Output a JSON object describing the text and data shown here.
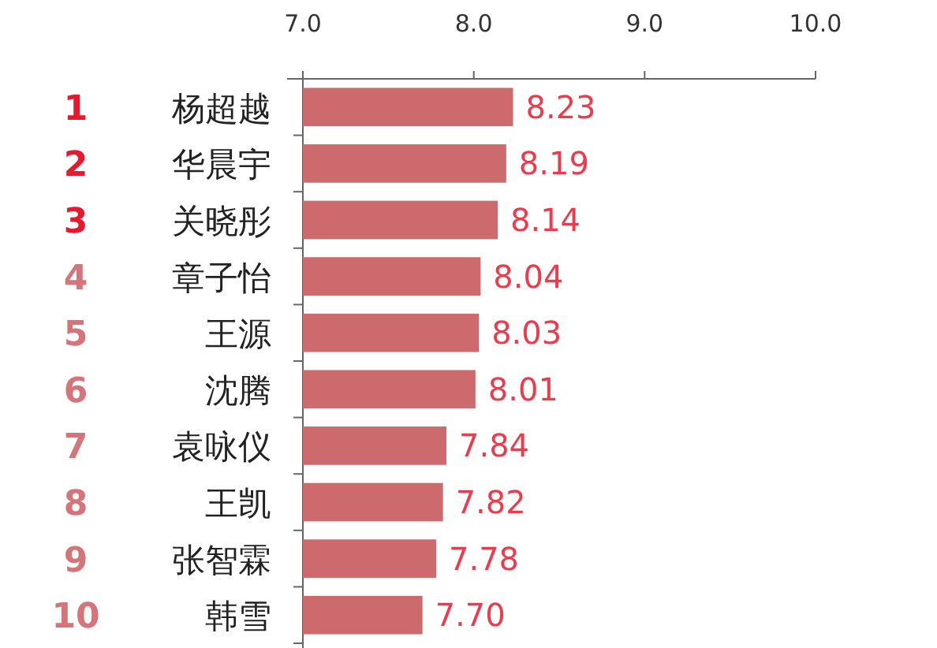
{
  "chart_data": {
    "type": "bar",
    "orientation": "horizontal",
    "categories": [
      "杨超越",
      "华晨宇",
      "关晓彤",
      "章子怡",
      "王源",
      "沈腾",
      "袁咏仪",
      "王凯",
      "张智霖",
      "韩雪"
    ],
    "values": [
      8.23,
      8.19,
      8.14,
      8.04,
      8.03,
      8.01,
      7.84,
      7.82,
      7.78,
      7.7
    ],
    "color": "#cd6a6e",
    "xlim": [
      7,
      10
    ],
    "xticks": [
      {
        "value": 7,
        "label": "7.0"
      },
      {
        "value": 8,
        "label": "8.0"
      },
      {
        "value": 9,
        "label": "9.0"
      },
      {
        "value": 10,
        "label": "10.0"
      }
    ],
    "value_labels": [
      "8.23",
      "8.19",
      "8.14",
      "8.04",
      "8.03",
      "8.01",
      "7.84",
      "7.82",
      "7.78",
      "7.70"
    ],
    "annotations": [
      "1",
      "2",
      "3",
      "4",
      "5",
      "6",
      "7",
      "8",
      "9",
      "10"
    ]
  }
}
